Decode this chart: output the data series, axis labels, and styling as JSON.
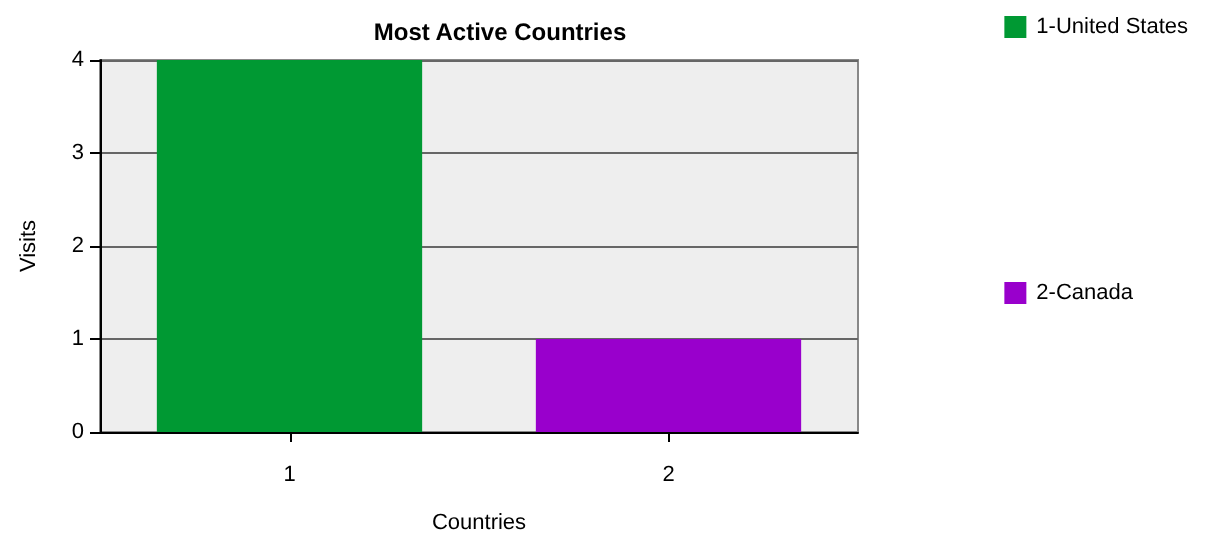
{
  "chart_data": {
    "type": "bar",
    "title": "Most Active Countries",
    "xlabel": "Countries",
    "ylabel": "Visits",
    "categories": [
      "1",
      "2"
    ],
    "series": [
      {
        "name": "1-United States",
        "color": "#009933",
        "values": [
          4,
          null
        ]
      },
      {
        "name": "2-Canada",
        "color": "#9900cc",
        "values": [
          null,
          1
        ]
      }
    ],
    "ylim": [
      0,
      4
    ],
    "yticks": [
      0,
      1,
      2,
      3,
      4
    ],
    "grid": "y",
    "legend": "right"
  }
}
